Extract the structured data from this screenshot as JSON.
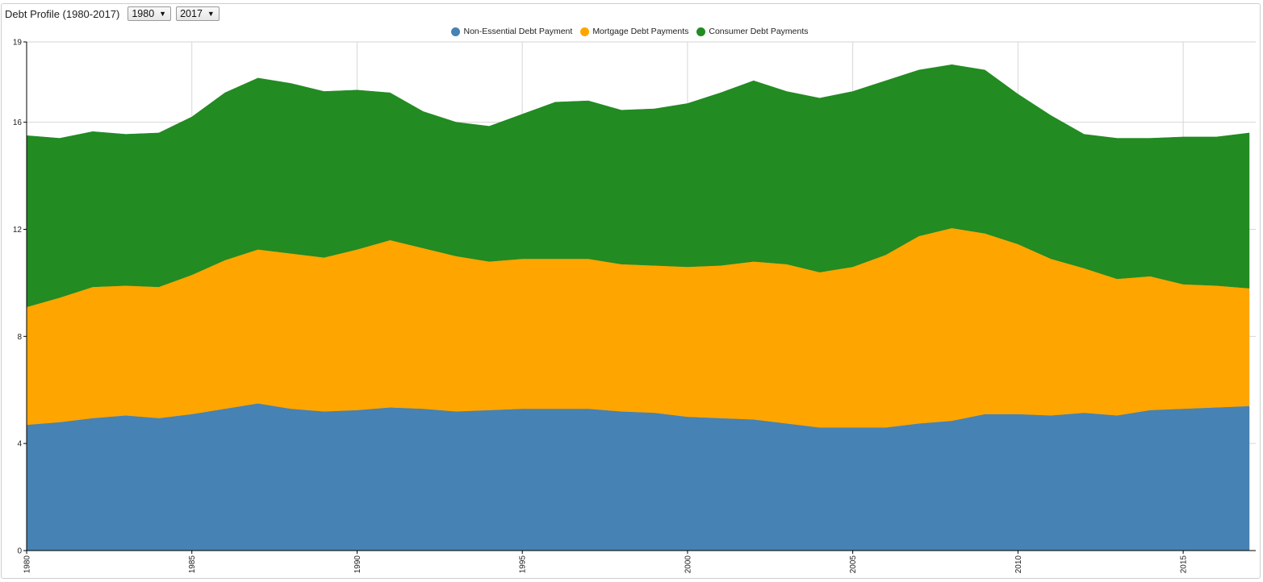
{
  "toolbar": {
    "title": "Debt Profile (1980-2017)",
    "start_year": "1980",
    "end_year": "2017",
    "caret": "▼"
  },
  "colors": {
    "non_essential": "#4682b4",
    "mortgage": "#ffa500",
    "consumer": "#228b22"
  },
  "chart_data": {
    "type": "area",
    "stacked": true,
    "x_range": [
      1980,
      2017
    ],
    "ylim": [
      0,
      19
    ],
    "grid": true,
    "legend_position": "top-center",
    "y_ticks": [
      0,
      4,
      8,
      12,
      16,
      19
    ],
    "x_ticks": [
      1980,
      1985,
      1990,
      1995,
      2000,
      2005,
      2010,
      2015
    ],
    "x": [
      1980,
      1981,
      1982,
      1983,
      1984,
      1985,
      1986,
      1987,
      1988,
      1989,
      1990,
      1991,
      1992,
      1993,
      1994,
      1995,
      1996,
      1997,
      1998,
      1999,
      2000,
      2001,
      2002,
      2003,
      2004,
      2005,
      2006,
      2007,
      2008,
      2009,
      2010,
      2011,
      2012,
      2013,
      2014,
      2015,
      2016,
      2017
    ],
    "series": [
      {
        "name": "Non-Essential Debt Payment",
        "color_key": "non_essential",
        "values": [
          4.7,
          4.8,
          4.95,
          5.05,
          4.95,
          5.1,
          5.3,
          5.5,
          5.3,
          5.2,
          5.25,
          5.35,
          5.3,
          5.2,
          5.25,
          5.3,
          5.3,
          5.3,
          5.2,
          5.15,
          5.0,
          4.95,
          4.9,
          4.75,
          4.6,
          4.6,
          4.6,
          4.75,
          4.85,
          5.1,
          5.1,
          5.05,
          5.15,
          5.05,
          5.25,
          5.3,
          5.35,
          5.4
        ]
      },
      {
        "name": "Mortgage Debt Payments",
        "color_key": "mortgage",
        "values": [
          4.4,
          4.65,
          4.9,
          4.85,
          4.9,
          5.2,
          5.55,
          5.75,
          5.8,
          5.75,
          6.0,
          6.25,
          6.0,
          5.8,
          5.55,
          5.6,
          5.6,
          5.6,
          5.5,
          5.5,
          5.6,
          5.7,
          5.9,
          5.95,
          5.8,
          6.0,
          6.45,
          7.0,
          7.2,
          6.75,
          6.35,
          5.85,
          5.4,
          5.1,
          5.0,
          4.65,
          4.55,
          4.4
        ]
      },
      {
        "name": "Consumer Debt Payments",
        "color_key": "consumer",
        "values": [
          6.4,
          5.95,
          5.8,
          5.65,
          5.75,
          5.9,
          6.25,
          6.4,
          6.35,
          6.2,
          5.95,
          5.5,
          5.1,
          5.0,
          5.05,
          5.4,
          5.85,
          5.9,
          5.75,
          5.85,
          6.1,
          6.45,
          6.75,
          6.45,
          6.5,
          6.55,
          6.5,
          6.2,
          6.1,
          6.1,
          5.6,
          5.35,
          5.0,
          5.25,
          5.15,
          5.5,
          5.55,
          5.8
        ]
      }
    ]
  }
}
